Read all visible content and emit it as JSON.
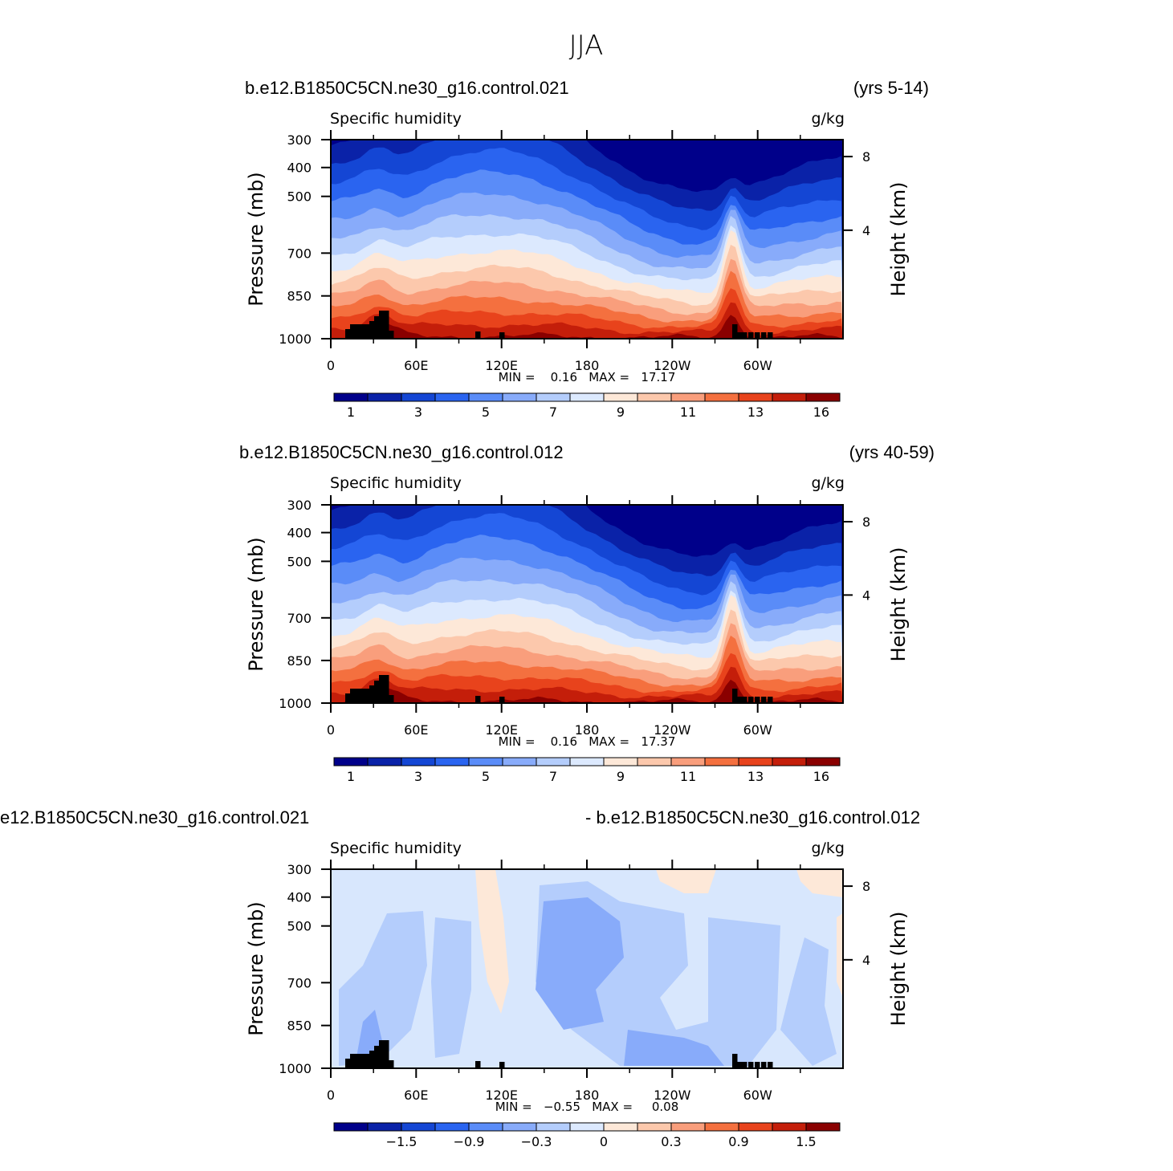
{
  "figure_title": "JJA",
  "chart_data": [
    {
      "type": "heatmap",
      "case_title": "b.e12.B1850C5CN.ne30_g16.control.021",
      "case_years": "(yrs 5-14)",
      "field_title": "Specific humidity",
      "units": "g/kg",
      "ylabel": "Pressure (mb)",
      "ylabel_right": "Height (km)",
      "x_ticks": [
        "0",
        "60E",
        "120E",
        "180",
        "120W",
        "60W"
      ],
      "y_ticks": [
        "300",
        "400",
        "500",
        "700",
        "850",
        "1000"
      ],
      "y2_ticks": [
        "8",
        "4"
      ],
      "xlim": [
        0,
        360
      ],
      "ylim": [
        1000,
        300
      ],
      "stats_text": "MIN =    0.16   MAX =   17.17",
      "min": 0.16,
      "max": 17.17,
      "colorbar_labels": [
        "1",
        "3",
        "5",
        "7",
        "9",
        "11",
        "13",
        "16"
      ],
      "colorbar_colors": [
        "#00008a",
        "#0a22a8",
        "#1446d4",
        "#2a64f0",
        "#5a8cf8",
        "#88abfa",
        "#b4cdfc",
        "#dce9fe",
        "#fde8d8",
        "#fcc8ac",
        "#f99e7c",
        "#f4703f",
        "#e8431c",
        "#c41e0a",
        "#8a0000"
      ],
      "contour_levels": [
        0.5,
        1,
        2,
        3,
        4,
        5,
        6,
        7,
        8,
        9,
        10,
        11,
        12,
        13,
        14,
        16,
        17
      ]
    },
    {
      "type": "heatmap",
      "case_title": "b.e12.B1850C5CN.ne30_g16.control.012",
      "case_years": "(yrs 40-59)",
      "field_title": "Specific humidity",
      "units": "g/kg",
      "ylabel": "Pressure (mb)",
      "ylabel_right": "Height (km)",
      "x_ticks": [
        "0",
        "60E",
        "120E",
        "180",
        "120W",
        "60W"
      ],
      "y_ticks": [
        "300",
        "400",
        "500",
        "700",
        "850",
        "1000"
      ],
      "y2_ticks": [
        "8",
        "4"
      ],
      "xlim": [
        0,
        360
      ],
      "ylim": [
        1000,
        300
      ],
      "stats_text": "MIN =    0.16   MAX =   17.37",
      "min": 0.16,
      "max": 17.37,
      "colorbar_labels": [
        "1",
        "3",
        "5",
        "7",
        "9",
        "11",
        "13",
        "16"
      ],
      "colorbar_colors": [
        "#00008a",
        "#0a22a8",
        "#1446d4",
        "#2a64f0",
        "#5a8cf8",
        "#88abfa",
        "#b4cdfc",
        "#dce9fe",
        "#fde8d8",
        "#fcc8ac",
        "#f99e7c",
        "#f4703f",
        "#e8431c",
        "#c41e0a",
        "#8a0000"
      ],
      "contour_levels": [
        0.5,
        1,
        2,
        3,
        4,
        5,
        6,
        7,
        8,
        9,
        10,
        11,
        12,
        13,
        14,
        16,
        17
      ]
    },
    {
      "type": "heatmap",
      "case_title_left": "e12.B1850C5CN.ne30_g16.control.021",
      "case_title_right": "- b.e12.B1850C5CN.ne30_g16.control.012",
      "field_title": "Specific humidity",
      "units": "g/kg",
      "ylabel": "Pressure (mb)",
      "ylabel_right": "Height (km)",
      "x_ticks": [
        "0",
        "60E",
        "120E",
        "180",
        "120W",
        "60W"
      ],
      "y_ticks": [
        "300",
        "400",
        "500",
        "700",
        "850",
        "1000"
      ],
      "y2_ticks": [
        "8",
        "4"
      ],
      "xlim": [
        0,
        360
      ],
      "ylim": [
        1000,
        300
      ],
      "stats_text": "MIN =   −0.55   MAX =     0.08",
      "min": -0.55,
      "max": 0.08,
      "colorbar_labels": [
        "−1.5",
        "−0.9",
        "−0.3",
        "0",
        "0.3",
        "0.9",
        "1.5"
      ],
      "colorbar_colors": [
        "#00008a",
        "#0a22a8",
        "#1446d4",
        "#2a64f0",
        "#5a8cf8",
        "#88abfa",
        "#b4cdfc",
        "#dce9fe",
        "#fde8d8",
        "#fcc8ac",
        "#f99e7c",
        "#f4703f",
        "#e8431c",
        "#c41e0a",
        "#8a0000"
      ],
      "contour_levels": [
        -1.8,
        -1.5,
        -1.2,
        -0.9,
        -0.6,
        -0.3,
        -0.1,
        0,
        0.1,
        0.3,
        0.6,
        0.9,
        1.2,
        1.5,
        1.8
      ]
    }
  ]
}
